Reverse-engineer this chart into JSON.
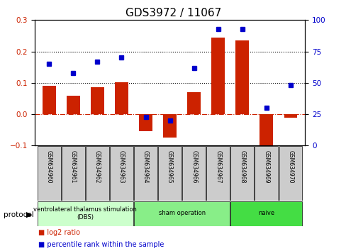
{
  "title": "GDS3972 / 11067",
  "samples": [
    "GSM634960",
    "GSM634961",
    "GSM634962",
    "GSM634963",
    "GSM634964",
    "GSM634965",
    "GSM634966",
    "GSM634967",
    "GSM634968",
    "GSM634969",
    "GSM634970"
  ],
  "log2_ratio": [
    0.09,
    0.06,
    0.085,
    0.102,
    -0.055,
    -0.075,
    0.07,
    0.245,
    0.235,
    -0.105,
    -0.012
  ],
  "percentile_rank": [
    65,
    58,
    67,
    70,
    23,
    20,
    62,
    93,
    93,
    30,
    48
  ],
  "bar_color": "#cc2200",
  "square_color": "#0000cc",
  "ylim_left": [
    -0.1,
    0.3
  ],
  "ylim_right": [
    0,
    100
  ],
  "yticks_left": [
    -0.1,
    0.0,
    0.1,
    0.2,
    0.3
  ],
  "yticks_right": [
    0,
    25,
    50,
    75,
    100
  ],
  "hlines": [
    0.0,
    0.1,
    0.2
  ],
  "hline_styles": [
    "dashdot",
    "dotted",
    "dotted"
  ],
  "hline_colors": [
    "#cc2200",
    "#000000",
    "#000000"
  ],
  "groups": [
    {
      "label": "ventrolateral thalamus stimulation\n(DBS)",
      "start": 0,
      "end": 3,
      "color": "#ccffcc"
    },
    {
      "label": "sham operation",
      "start": 4,
      "end": 7,
      "color": "#88ee88"
    },
    {
      "label": "naive",
      "start": 8,
      "end": 10,
      "color": "#44dd44"
    }
  ],
  "legend_bar_label": "log2 ratio",
  "legend_square_label": "percentile rank within the sample",
  "protocol_label": "protocol",
  "bg_color": "#ffffff",
  "plot_bg_color": "#ffffff",
  "xlabel_ticklabel_bg": "#cccccc",
  "title_fontsize": 11,
  "tick_fontsize": 7.5,
  "bar_width": 0.55
}
